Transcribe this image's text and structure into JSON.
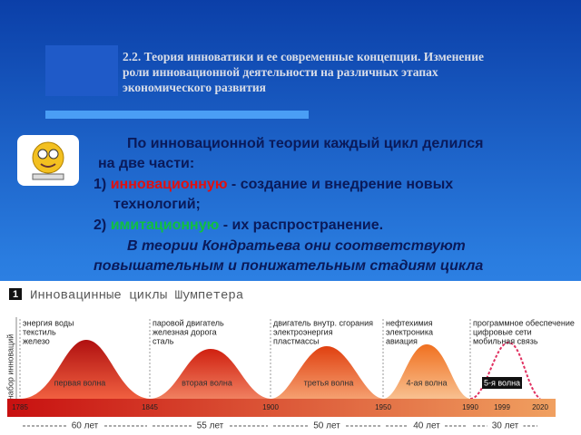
{
  "header": {
    "title_lines": [
      "2.2. Теория инноватики и ее современные концепции. Изменение",
      "роли инновационной деятельности на различных этапах",
      "экономического развития"
    ]
  },
  "body": {
    "intro": [
      "По инновационной теории каждый цикл делился",
      "на две части:"
    ],
    "items": [
      {
        "number": "1)",
        "term": "инновационную",
        "rest": " - создание и внедрение новых",
        "cont": "технологий;"
      },
      {
        "number": "2)",
        "term": "имитационную",
        "rest": " - их распространение."
      }
    ],
    "note": [
      "В теории Кондратьева они соответствуют",
      "повышательным и понижательным стадиям цикла"
    ]
  },
  "figure": {
    "number": "1",
    "title": "Инновацинные циклы Шумпетера",
    "y_label": "набор инноваций",
    "waves": [
      {
        "label": "первая волна",
        "desc": [
          "энергия воды",
          "текстиль",
          "железо"
        ]
      },
      {
        "label": "вторая волна",
        "desc": [
          "паровой двигатель",
          "железная дорога",
          "сталь"
        ]
      },
      {
        "label": "третья волна",
        "desc": [
          "двигатель внутр. сгорания",
          "электроэнергия",
          "пластмассы"
        ]
      },
      {
        "label": "4-ая волна",
        "desc": [
          "нефтехимия",
          "электроника",
          "авиация"
        ]
      },
      {
        "label": "5-я волна",
        "desc": [
          "программное обеспечение",
          "цифровые сети",
          "мобильная связь"
        ]
      }
    ],
    "years": [
      "1785",
      "1845",
      "1900",
      "1950",
      "1990",
      "1999",
      "2020"
    ],
    "durations": [
      "60 лет",
      "55 лет",
      "50 лет",
      "40 лет",
      "30 лет"
    ]
  }
}
